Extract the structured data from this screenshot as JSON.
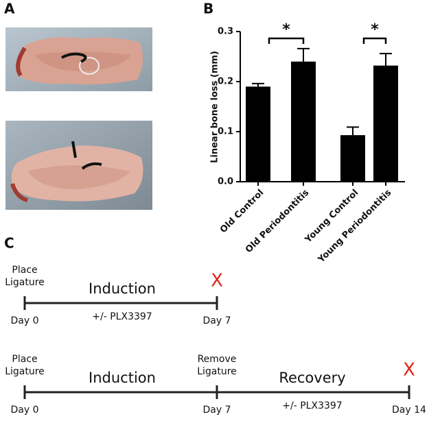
{
  "panel_a": {
    "label": "A"
  },
  "chart_data": {
    "type": "bar",
    "label": "B",
    "y_label": "Linear bone loss (mm)",
    "categories": [
      "Old Control",
      "Old Periodontitis",
      "Young Control",
      "Young Periodontitis"
    ],
    "series": [
      {
        "color": "#000000",
        "values": [
          0.19,
          0.24,
          0.093,
          0.232
        ],
        "errors": [
          0.006,
          0.026,
          0.016,
          0.024
        ]
      }
    ],
    "ylim": [
      0,
      0.3
    ],
    "yticks": [
      {
        "value": 0,
        "label": "0.0"
      },
      0.1,
      0.2,
      0.3
    ],
    "annotations": [
      "*",
      "*"
    ]
  },
  "panel_c": {
    "label": "C",
    "timelines": [
      {
        "start": [
          "Place",
          "Ligature"
        ],
        "phase": "Induction",
        "end_mark": "X",
        "treatment": "+/- PLX3397",
        "days": [
          "Day 0",
          "Day 7"
        ]
      },
      {
        "start": [
          "Place",
          "Ligature"
        ],
        "phase": "Induction",
        "middle": [
          "Remove",
          "Ligature"
        ],
        "phase2": "Recovery",
        "end_mark": "X",
        "treatment": "+/- PLX3397",
        "days": [
          "Day 0",
          "Day 7",
          "Day 14"
        ]
      }
    ]
  }
}
